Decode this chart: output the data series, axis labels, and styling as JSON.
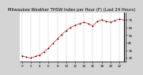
{
  "title": "Milwaukee Weather THSW Index per Hour (F) (Last 24 Hours)",
  "background_color": "#d4d4d4",
  "plot_bg_color": "#ffffff",
  "line_color": "#ff0000",
  "dot_color": "#000000",
  "grid_color": "#888888",
  "ylim": [
    20,
    85
  ],
  "yticks": [
    25,
    35,
    45,
    55,
    65,
    75
  ],
  "hours": [
    0,
    1,
    2,
    3,
    4,
    5,
    6,
    7,
    8,
    9,
    10,
    11,
    12,
    13,
    14,
    15,
    16,
    17,
    18,
    19,
    20,
    21,
    22,
    23
  ],
  "values": [
    28,
    26,
    25,
    27,
    29,
    33,
    38,
    44,
    50,
    56,
    61,
    65,
    68,
    70,
    72,
    70,
    67,
    73,
    75,
    73,
    72,
    74,
    76,
    75
  ],
  "title_fontsize": 3.8,
  "tick_fontsize": 3.0,
  "grid_vline_positions": [
    0,
    2,
    4,
    6,
    8,
    10,
    12,
    14,
    16,
    18,
    20,
    22
  ]
}
